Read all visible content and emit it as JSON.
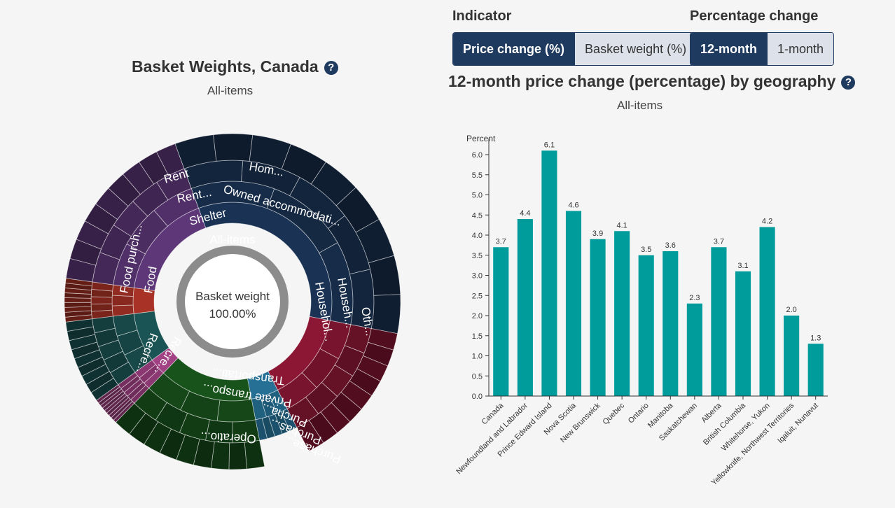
{
  "controls": {
    "indicator_label": "Indicator",
    "indicator_options": [
      "Price change (%)",
      "Basket weight (%)"
    ],
    "percentage_label": "Percentage change",
    "percentage_options": [
      "12-month",
      "1-month"
    ]
  },
  "sunburst": {
    "title": "Basket Weights, Canada",
    "subtitle": "All-items",
    "center_label": "Basket weight",
    "center_value": "100.00%",
    "ring_label": "All-items",
    "segment_labels": [
      "Shelter",
      "Rent...",
      "Rent",
      "Owned accommodati...",
      "Hom...",
      "Househol...",
      "Househ...",
      "Oth...",
      "Transportati...",
      "Private transpo...",
      "Operatio...",
      "Purcha...",
      "Purchas...",
      "Purchase...",
      "Recre...",
      "Recre...",
      "Food",
      "Food purch..."
    ],
    "colors": {
      "shelter": "#1e3a5f",
      "household": "#9e1a3b",
      "transport": "#1b5e20",
      "recreation": "#1f5f5f",
      "food": "#6b3f8a",
      "center_ring": "#8c8c8c"
    }
  },
  "bar_chart": {
    "title": "12-month price change (percentage) by geography",
    "subtitle": "All-items",
    "colors": {
      "bar": "#009c9c"
    }
  },
  "chart_data": {
    "type": "bar",
    "ylabel": "Percent",
    "ylim": [
      0,
      6.4
    ],
    "yticks": [
      "0.0",
      "0.5",
      "1.0",
      "1.5",
      "2.0",
      "2.5",
      "3.0",
      "3.5",
      "4.0",
      "4.5",
      "5.0",
      "5.5",
      "6.0"
    ],
    "categories": [
      "Canada",
      "Newfoundland and Labrador",
      "Prince Edward Island",
      "Nova Scotia",
      "New Brunswick",
      "Quebec",
      "Ontario",
      "Manitoba",
      "Saskatchewan",
      "Alberta",
      "British Columbia",
      "Whitehorse, Yukon",
      "Yellowknife, Northwest Territories",
      "Iqaluit, Nunavut"
    ],
    "values": [
      3.7,
      4.4,
      6.1,
      4.6,
      3.9,
      4.1,
      3.5,
      3.6,
      2.3,
      3.7,
      3.1,
      4.2,
      2.0,
      1.3
    ],
    "value_labels": [
      "3.7",
      "4.4",
      "6.1",
      "4.6",
      "3.9",
      "4.1",
      "3.5",
      "3.6",
      "2.3",
      "3.7",
      "3.1",
      "4.2",
      "2.0",
      "1.3"
    ]
  }
}
